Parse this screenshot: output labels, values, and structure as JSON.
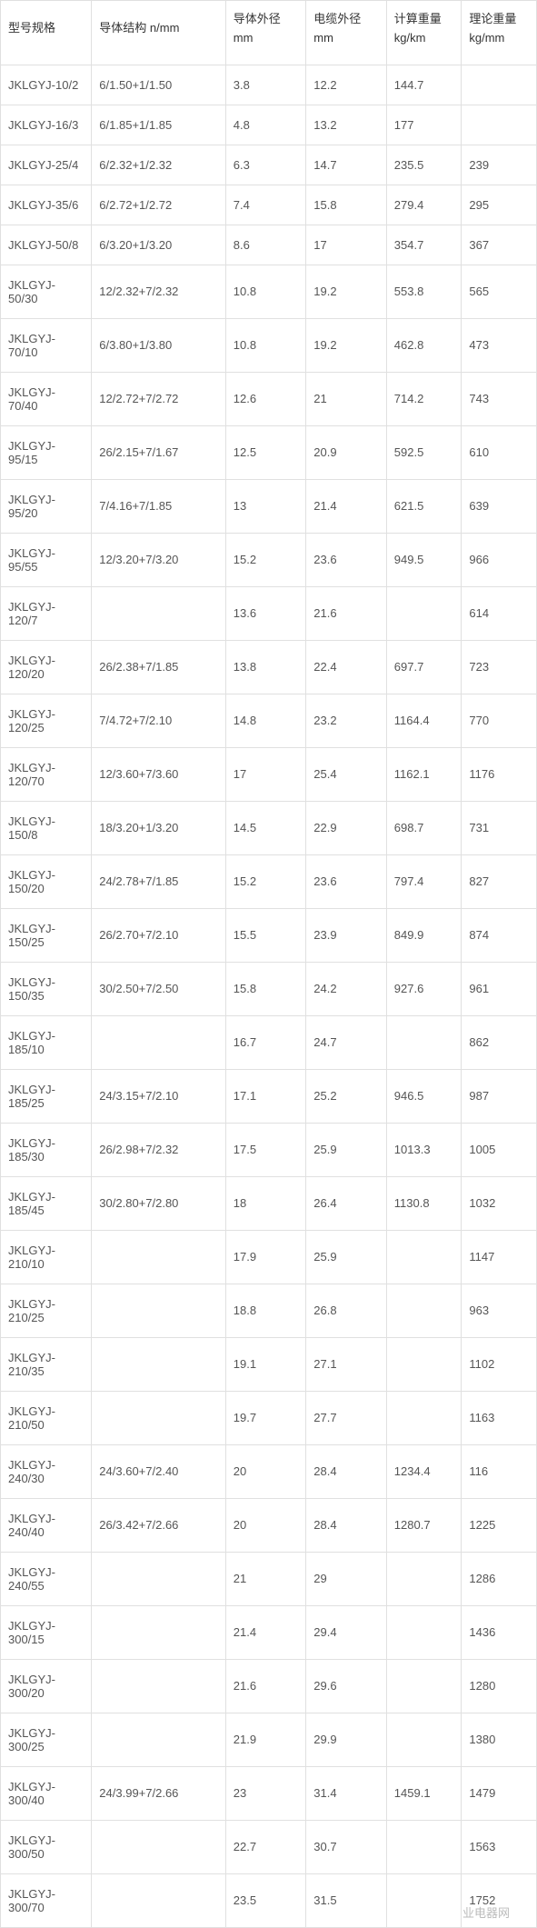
{
  "table": {
    "columns": [
      {
        "label_line1": "型号规格",
        "label_line2": ""
      },
      {
        "label_line1": "导体结构 n/mm",
        "label_line2": ""
      },
      {
        "label_line1": "导体外径",
        "label_line2": "mm"
      },
      {
        "label_line1": "电缆外径",
        "label_line2": "mm"
      },
      {
        "label_line1": "计算重量",
        "label_line2": "kg/km"
      },
      {
        "label_line1": "理论重量",
        "label_line2": "kg/mm"
      }
    ],
    "rows": [
      [
        "JKLGYJ-10/2",
        "6/1.50+1/1.50",
        "3.8",
        "12.2",
        "144.7",
        ""
      ],
      [
        "JKLGYJ-16/3",
        "6/1.85+1/1.85",
        "4.8",
        "13.2",
        "177",
        ""
      ],
      [
        "JKLGYJ-25/4",
        "6/2.32+1/2.32",
        "6.3",
        "14.7",
        "235.5",
        "239"
      ],
      [
        "JKLGYJ-35/6",
        "6/2.72+1/2.72",
        "7.4",
        "15.8",
        "279.4",
        "295"
      ],
      [
        "JKLGYJ-50/8",
        "6/3.20+1/3.20",
        "8.6",
        "17",
        "354.7",
        "367"
      ],
      [
        "JKLGYJ-50/30",
        "12/2.32+7/2.32",
        "10.8",
        "19.2",
        "553.8",
        "565"
      ],
      [
        "JKLGYJ-70/10",
        "6/3.80+1/3.80",
        "10.8",
        "19.2",
        "462.8",
        "473"
      ],
      [
        "JKLGYJ-70/40",
        "12/2.72+7/2.72",
        "12.6",
        "21",
        "714.2",
        "743"
      ],
      [
        "JKLGYJ-95/15",
        "26/2.15+7/1.67",
        "12.5",
        "20.9",
        "592.5",
        "610"
      ],
      [
        "JKLGYJ-95/20",
        "7/4.16+7/1.85",
        "13",
        "21.4",
        "621.5",
        "639"
      ],
      [
        "JKLGYJ-95/55",
        "12/3.20+7/3.20",
        "15.2",
        "23.6",
        "949.5",
        "966"
      ],
      [
        "JKLGYJ-120/7",
        "",
        "13.6",
        "21.6",
        "",
        "614"
      ],
      [
        "JKLGYJ-120/20",
        "26/2.38+7/1.85",
        "13.8",
        "22.4",
        "697.7",
        "723"
      ],
      [
        "JKLGYJ-120/25",
        "7/4.72+7/2.10",
        "14.8",
        "23.2",
        "1164.4",
        "770"
      ],
      [
        "JKLGYJ-120/70",
        "12/3.60+7/3.60",
        "17",
        "25.4",
        "1162.1",
        "1176"
      ],
      [
        "JKLGYJ-150/8",
        "18/3.20+1/3.20",
        "14.5",
        "22.9",
        "698.7",
        "731"
      ],
      [
        "JKLGYJ-150/20",
        "24/2.78+7/1.85",
        "15.2",
        "23.6",
        "797.4",
        "827"
      ],
      [
        "JKLGYJ-150/25",
        "26/2.70+7/2.10",
        "15.5",
        "23.9",
        "849.9",
        "874"
      ],
      [
        "JKLGYJ-150/35",
        "30/2.50+7/2.50",
        "15.8",
        "24.2",
        "927.6",
        "961"
      ],
      [
        "JKLGYJ-185/10",
        "",
        "16.7",
        "24.7",
        "",
        "862"
      ],
      [
        "JKLGYJ-185/25",
        "24/3.15+7/2.10",
        "17.1",
        "25.2",
        "946.5",
        "987"
      ],
      [
        "JKLGYJ-185/30",
        "26/2.98+7/2.32",
        "17.5",
        "25.9",
        "1013.3",
        "1005"
      ],
      [
        "JKLGYJ-185/45",
        "30/2.80+7/2.80",
        "18",
        "26.4",
        "1130.8",
        "1032"
      ],
      [
        "JKLGYJ-210/10",
        "",
        "17.9",
        "25.9",
        "",
        "1147"
      ],
      [
        "JKLGYJ-210/25",
        "",
        "18.8",
        "26.8",
        "",
        "963"
      ],
      [
        "JKLGYJ-210/35",
        "",
        "19.1",
        "27.1",
        "",
        "1102"
      ],
      [
        "JKLGYJ-210/50",
        "",
        "19.7",
        "27.7",
        "",
        "1163"
      ],
      [
        "JKLGYJ-240/30",
        "24/3.60+7/2.40",
        "20",
        "28.4",
        "1234.4",
        "116"
      ],
      [
        "JKLGYJ-240/40",
        "26/3.42+7/2.66",
        "20",
        "28.4",
        "1280.7",
        "1225"
      ],
      [
        "JKLGYJ-240/55",
        "",
        "21",
        "29",
        "",
        "1286"
      ],
      [
        "JKLGYJ-300/15",
        "",
        "21.4",
        "29.4",
        "",
        "1436"
      ],
      [
        "JKLGYJ-300/20",
        "",
        "21.6",
        "29.6",
        "",
        "1280"
      ],
      [
        "JKLGYJ-300/25",
        "",
        "21.9",
        "29.9",
        "",
        "1380"
      ],
      [
        "JKLGYJ-300/40",
        "24/3.99+7/2.66",
        "23",
        "31.4",
        "1459.1",
        "1479"
      ],
      [
        "JKLGYJ-300/50",
        "",
        "22.7",
        "30.7",
        "",
        "1563"
      ],
      [
        "JKLGYJ-300/70",
        "",
        "23.5",
        "31.5",
        "",
        "1752"
      ]
    ]
  },
  "watermark_text": "业电器网",
  "style": {
    "border_color": "#e0e0e0",
    "text_color": "#555555",
    "header_text_color": "#333333",
    "font_size": 13,
    "widths_pct": [
      17,
      25,
      15,
      15,
      14,
      14
    ]
  }
}
